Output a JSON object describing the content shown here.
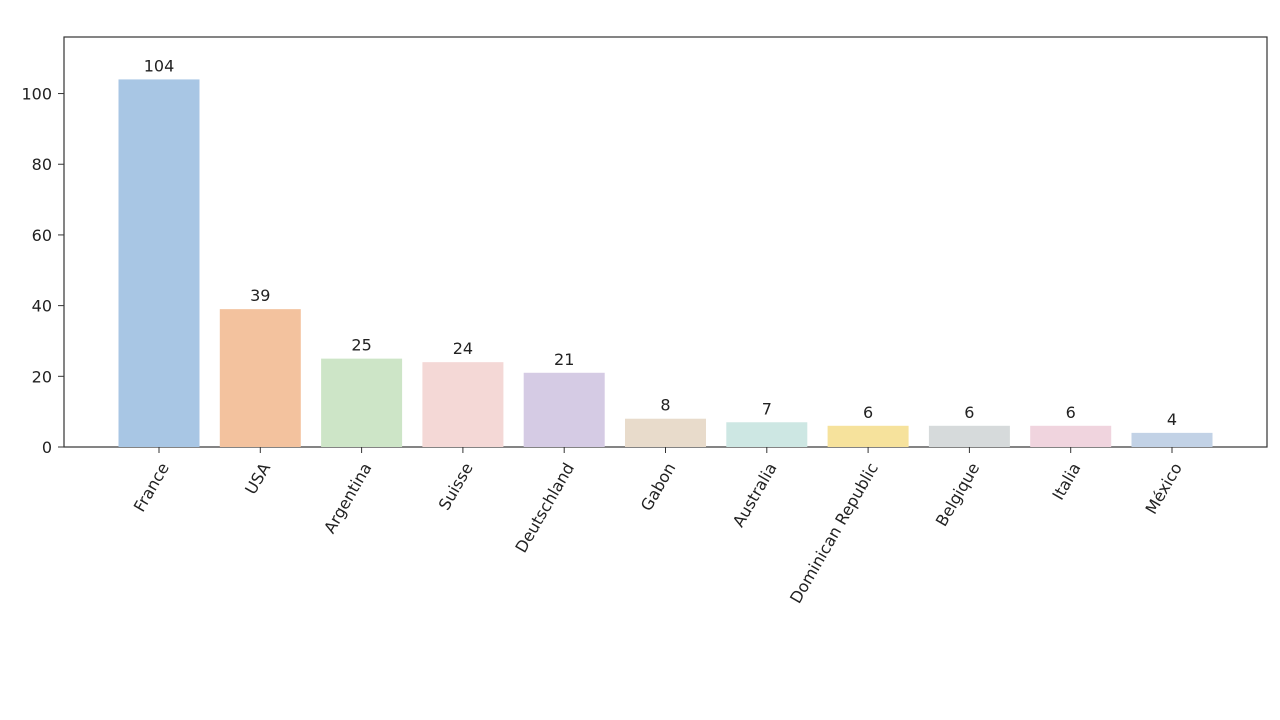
{
  "chart_data": {
    "type": "bar",
    "categories": [
      "France",
      "USA",
      "Argentina",
      "Suisse",
      "Deutschland",
      "Gabon",
      "Australia",
      "Dominican Republic",
      "Belgique",
      "Italia",
      "México"
    ],
    "values": [
      104,
      39,
      25,
      24,
      21,
      8,
      7,
      6,
      6,
      6,
      4
    ],
    "colors": [
      "#a8c6e4",
      "#f3c29e",
      "#cde5c7",
      "#f4d8d6",
      "#d5cbe4",
      "#e8dbcb",
      "#cde7e3",
      "#f6e29c",
      "#d6dadb",
      "#f0d4de",
      "#c2d2e6"
    ],
    "ylim": [
      0,
      116
    ],
    "yticks": [
      0,
      20,
      40,
      60,
      80,
      100
    ],
    "x_tick_rotation": 60,
    "grid": false,
    "legend": "none",
    "title": "",
    "xlabel": "",
    "ylabel": ""
  }
}
